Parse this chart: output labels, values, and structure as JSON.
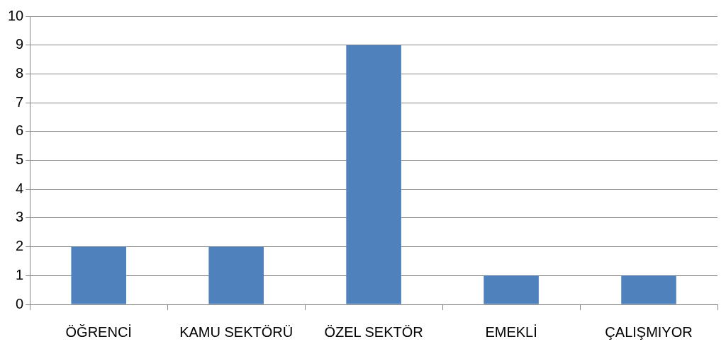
{
  "chart_data": {
    "type": "bar",
    "categories": [
      "ÖĞRENCİ",
      "KAMU SEKTÖRÜ",
      "ÖZEL SEKTÖR",
      "EMEKLİ",
      "ÇALIŞMIYOR"
    ],
    "values": [
      2,
      2,
      9,
      1,
      1
    ],
    "color": "#4f81bd",
    "ylim": [
      0,
      10
    ],
    "yticks": [
      0,
      1,
      2,
      3,
      4,
      5,
      6,
      7,
      8,
      9,
      10
    ],
    "grid": "y",
    "legend": false
  }
}
